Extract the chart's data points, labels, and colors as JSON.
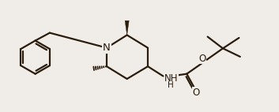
{
  "bg_color": "#f0ede8",
  "bond_color": "#2b1d0e",
  "bond_width": 1.6,
  "font_size": 8.5,
  "figsize": [
    3.53,
    1.42
  ],
  "dpi": 100,
  "xlim": [
    0,
    10
  ],
  "ylim": [
    0,
    2.85
  ]
}
